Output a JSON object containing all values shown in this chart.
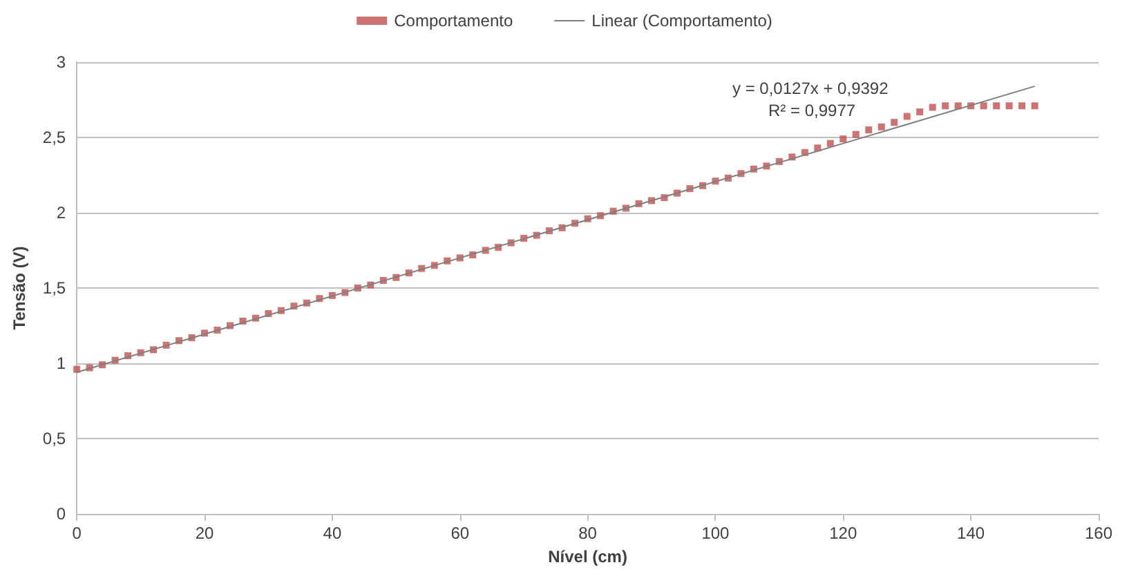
{
  "chart_data": {
    "type": "scatter",
    "xlabel": "Nível (cm)",
    "ylabel": "Tensão (V)",
    "annotations": [
      "y = 0,0127x + 0,9392",
      "R² = 0,9977"
    ],
    "series": [
      {
        "name": "Comportamento",
        "color": "#c0504d",
        "marker": "square",
        "x": [
          0,
          2,
          4,
          6,
          8,
          10,
          12,
          14,
          16,
          18,
          20,
          22,
          24,
          26,
          28,
          30,
          32,
          34,
          36,
          38,
          40,
          42,
          44,
          46,
          48,
          50,
          52,
          54,
          56,
          58,
          60,
          62,
          64,
          66,
          68,
          70,
          72,
          74,
          76,
          78,
          80,
          82,
          84,
          86,
          88,
          90,
          92,
          94,
          96,
          98,
          100,
          102,
          104,
          106,
          108,
          110,
          112,
          114,
          116,
          118,
          120,
          122,
          124,
          126,
          128,
          130,
          132,
          134,
          136,
          138,
          140,
          142,
          144,
          146,
          148,
          150
        ],
        "values": [
          0.96,
          0.97,
          0.99,
          1.02,
          1.05,
          1.07,
          1.09,
          1.12,
          1.15,
          1.17,
          1.2,
          1.22,
          1.25,
          1.28,
          1.3,
          1.33,
          1.35,
          1.38,
          1.4,
          1.43,
          1.45,
          1.47,
          1.5,
          1.52,
          1.55,
          1.57,
          1.6,
          1.63,
          1.65,
          1.68,
          1.7,
          1.72,
          1.75,
          1.77,
          1.8,
          1.83,
          1.85,
          1.88,
          1.9,
          1.93,
          1.96,
          1.98,
          2.01,
          2.03,
          2.06,
          2.08,
          2.1,
          2.13,
          2.16,
          2.18,
          2.21,
          2.23,
          2.26,
          2.29,
          2.31,
          2.34,
          2.37,
          2.4,
          2.43,
          2.46,
          2.49,
          2.52,
          2.55,
          2.57,
          2.6,
          2.64,
          2.67,
          2.7,
          2.71,
          2.71,
          2.71,
          2.71,
          2.71,
          2.71,
          2.71,
          2.71
        ]
      },
      {
        "name": "Linear (Comportamento)",
        "type": "line",
        "color": "#7f7f7f",
        "marker": "none",
        "x": [
          0,
          150
        ],
        "values": [
          0.94,
          2.84
        ]
      }
    ],
    "xlim": [
      0,
      160
    ],
    "xticks": [
      0,
      20,
      40,
      60,
      80,
      100,
      120,
      140,
      160
    ],
    "ylim": [
      0,
      3
    ],
    "yticks": [
      0,
      {
        "value": 0.5,
        "label": "0,5"
      },
      1,
      {
        "value": 1.5,
        "label": "1,5"
      },
      2,
      {
        "value": 2.5,
        "label": "2,5"
      },
      3
    ],
    "grid": "y",
    "legend": "top"
  }
}
